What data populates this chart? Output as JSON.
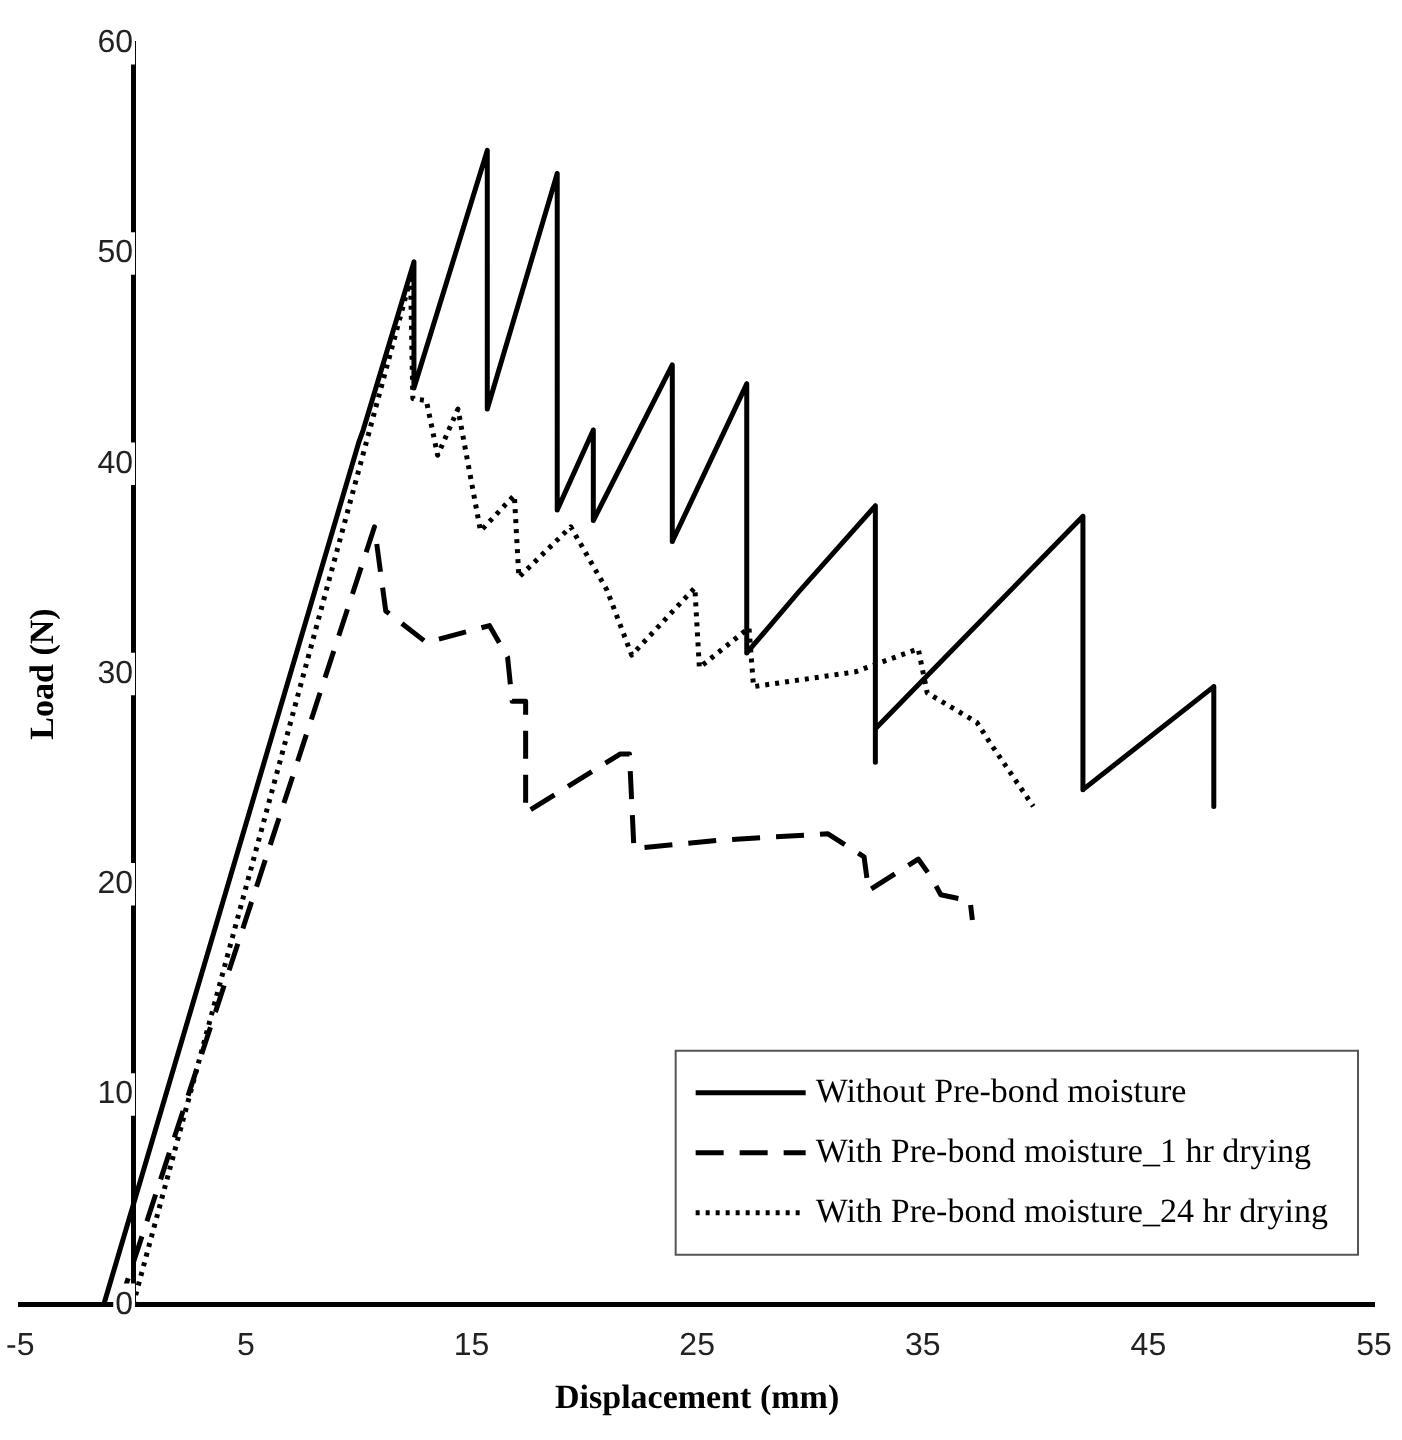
{
  "chart_data": {
    "type": "line",
    "xlabel": "Displacement (mm)",
    "ylabel": "Load (N)",
    "xlim": [
      -5,
      55
    ],
    "xticks": [
      -5,
      5,
      15,
      25,
      35,
      45,
      55
    ],
    "ylim": [
      0,
      60
    ],
    "yticks": [
      0,
      10,
      20,
      30,
      40,
      50,
      60
    ],
    "grid": false,
    "legend": "bottom right",
    "marker": "none",
    "series": [
      {
        "name": "Without Pre-bond moisture",
        "color": "#000000",
        "line_style": "solid",
        "x": [
          -1.3,
          10,
          10.2,
          12.45,
          12.45,
          15.7,
          15.7,
          18.8,
          18.8,
          20.4,
          20.4,
          23.9,
          23.9,
          27.2,
          27.2,
          29.5,
          32.9,
          32.9,
          32.9,
          42.1,
          42.1,
          47.9,
          47.9
        ],
        "values": [
          0,
          41,
          41.6,
          49.6,
          43.6,
          54.9,
          42.6,
          53.8,
          37.8,
          41.6,
          37.3,
          44.7,
          36.3,
          43.8,
          31,
          33.9,
          38,
          25.8,
          27.4,
          37.5,
          24.5,
          29.4,
          23.7
        ]
      },
      {
        "name": "With Pre-bond moisture_1 hr drying",
        "color": "#000000",
        "line_style": "dashed",
        "x": [
          -0.6,
          10.7,
          11.2,
          13,
          15.8,
          16.6,
          16.8,
          17.4,
          17.4,
          21.6,
          22,
          22.2,
          26,
          30.8,
          32.4,
          32.6,
          34.8,
          35.4,
          35.8,
          37.1,
          37.2
        ],
        "values": [
          0,
          37,
          33,
          31.5,
          32.3,
          30.8,
          28.7,
          28.7,
          23.4,
          26.2,
          26.2,
          21.7,
          22.1,
          22.4,
          21.3,
          19.7,
          21.2,
          20.3,
          19.5,
          19.2,
          18.3
        ]
      },
      {
        "name": "With Pre-bond moisture_24 hr drying",
        "color": "#000000",
        "line_style": "dotted",
        "x": [
          0,
          12.3,
          12.4,
          13,
          13.5,
          14.4,
          15.4,
          16.9,
          17.1,
          19.4,
          21,
          22.1,
          24.9,
          25.1,
          27.3,
          27.5,
          32,
          34.8,
          35.2,
          37.4,
          38,
          39.9
        ],
        "values": [
          0,
          48.8,
          43.1,
          43,
          40.4,
          42.6,
          36.8,
          38.5,
          34.6,
          37,
          34,
          30.9,
          34.1,
          30.3,
          32.2,
          29.4,
          30.1,
          31.2,
          29.1,
          27.7,
          26.7,
          23.7
        ]
      }
    ]
  }
}
